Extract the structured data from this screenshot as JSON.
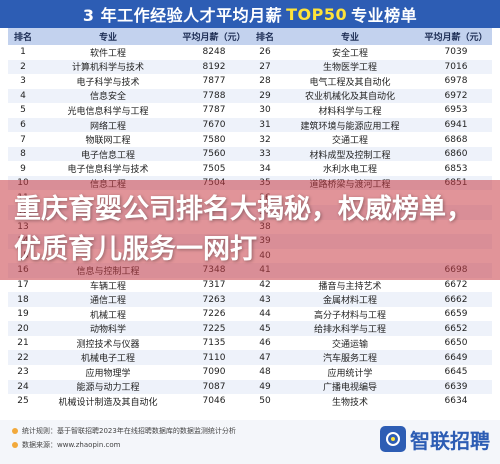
{
  "header": {
    "title_prefix": "3 年工作经验人才平均月薪",
    "title_accent": "TOP50",
    "title_suffix": "专业榜单"
  },
  "columns": [
    "排名",
    "专业",
    "平均月薪（元）",
    "排名",
    "专业",
    "平均月薪（元）"
  ],
  "rows": [
    [
      "1",
      "软件工程",
      "8248",
      "26",
      "安全工程",
      "7039"
    ],
    [
      "2",
      "计算机科学与技术",
      "8192",
      "27",
      "生物医学工程",
      "7016"
    ],
    [
      "3",
      "电子科学与技术",
      "7877",
      "28",
      "电气工程及其自动化",
      "6978"
    ],
    [
      "4",
      "信息安全",
      "7788",
      "29",
      "农业机械化及其自动化",
      "6972"
    ],
    [
      "5",
      "光电信息科学与工程",
      "7787",
      "30",
      "材料科学与工程",
      "6953"
    ],
    [
      "6",
      "网络工程",
      "7670",
      "31",
      "建筑环境与能源应用工程",
      "6941"
    ],
    [
      "7",
      "物联网工程",
      "7580",
      "32",
      "交通工程",
      "6868"
    ],
    [
      "8",
      "电子信息工程",
      "7560",
      "33",
      "材料成型及控制工程",
      "6860"
    ],
    [
      "9",
      "电子信息科学与技术",
      "7505",
      "34",
      "水利水电工程",
      "6853"
    ],
    [
      "10",
      "信息工程",
      "7504",
      "35",
      "道路桥梁与渡河工程",
      "6851"
    ],
    [
      "11",
      "",
      "",
      "36",
      "",
      ""
    ],
    [
      "12",
      "",
      "",
      "37",
      "",
      ""
    ],
    [
      "13",
      "",
      "",
      "38",
      "",
      ""
    ],
    [
      "14",
      "",
      "",
      "39",
      "",
      ""
    ],
    [
      "15",
      "",
      "",
      "40",
      "",
      ""
    ],
    [
      "16",
      "信息与控制工程",
      "7348",
      "41",
      "",
      "6698"
    ],
    [
      "17",
      "车辆工程",
      "7317",
      "42",
      "播音与主持艺术",
      "6672"
    ],
    [
      "18",
      "通信工程",
      "7263",
      "43",
      "金属材料工程",
      "6662"
    ],
    [
      "19",
      "机械工程",
      "7226",
      "44",
      "高分子材料与工程",
      "6659"
    ],
    [
      "20",
      "动物科学",
      "7225",
      "45",
      "给排水科学与工程",
      "6652"
    ],
    [
      "21",
      "测控技术与仪器",
      "7135",
      "46",
      "交通运输",
      "6650"
    ],
    [
      "22",
      "机械电子工程",
      "7110",
      "47",
      "汽车服务工程",
      "6649"
    ],
    [
      "23",
      "应用物理学",
      "7090",
      "48",
      "应用统计学",
      "6645"
    ],
    [
      "24",
      "能源与动力工程",
      "7087",
      "49",
      "广播电视编导",
      "6639"
    ],
    [
      "25",
      "机械设计制造及其自动化",
      "7046",
      "50",
      "生物技术",
      "6634"
    ]
  ],
  "headline": "重庆育婴公司排名大揭秘，权威榜单，优质育儿服务一网打",
  "footer": {
    "note_1": "统计规则：基于智联招聘2023年在线招聘数据库的数据监测统计分析",
    "note_2": "数据来源：www.zhaopin.com",
    "logo_text": "智联招聘"
  },
  "colors": {
    "header_bg": "#2d5db4",
    "accent": "#ffe33a",
    "overlay": "#c83c46"
  }
}
